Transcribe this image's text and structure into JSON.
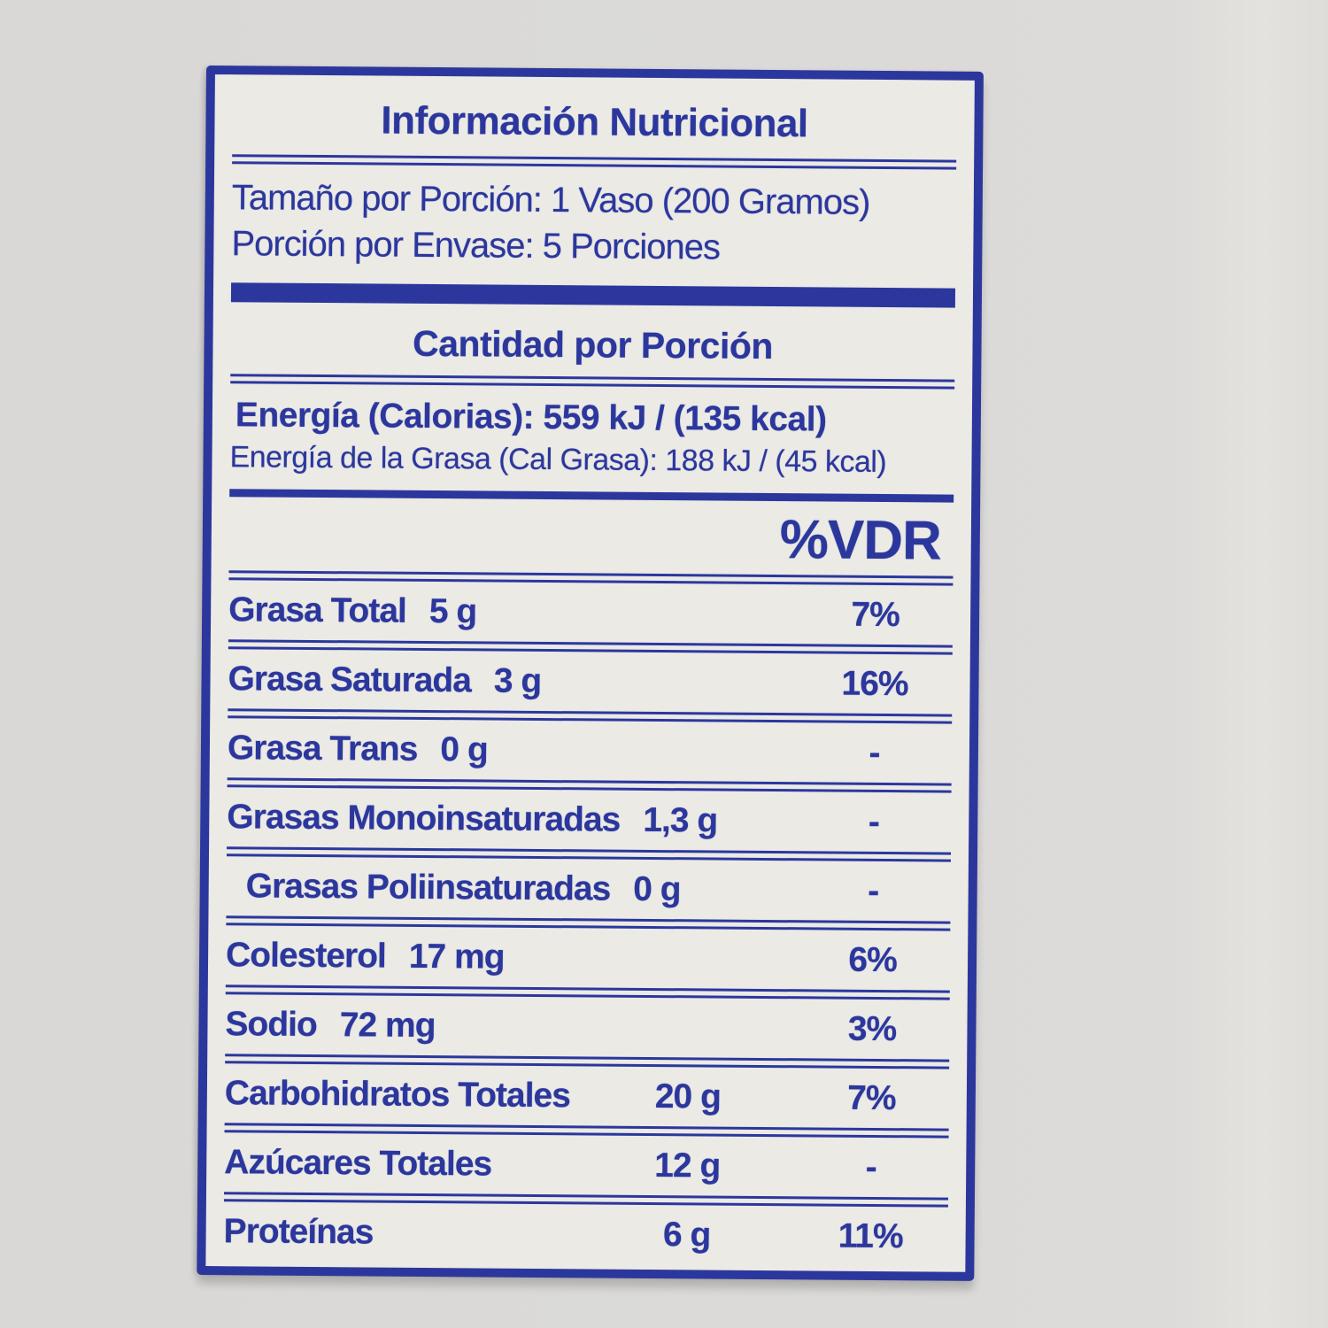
{
  "colors": {
    "accent_blue": "#2c379d",
    "label_background": "#ebeae5",
    "page_background": "#dbdad8"
  },
  "label": {
    "title": "Información Nutricional",
    "serving": {
      "size_line": "Tamaño por Porción: 1 Vaso (200 Gramos)",
      "per_container_line": "Porción por Envase: 5 Porciones"
    },
    "amount_header": "Cantidad por Porción",
    "energy": {
      "calories_line": "Energía (Calorias): 559 kJ / (135 kcal)",
      "fat_calories_line": "Energía de la Grasa (Cal Grasa): 188 kJ / (45 kcal)"
    },
    "vdr_header": "%VDR",
    "rows": [
      {
        "label": "Grasa Total",
        "amount": "5 g",
        "pct": "7%"
      },
      {
        "label": "Grasa Saturada",
        "amount": "3 g",
        "pct": "16%"
      },
      {
        "label": "Grasa Trans",
        "amount": "0 g",
        "pct": "-"
      },
      {
        "label": "Grasas Monoinsaturadas",
        "amount": "1,3 g",
        "pct": "-"
      },
      {
        "label": "Grasas Poliinsaturadas",
        "amount": "0 g",
        "pct": "-"
      },
      {
        "label": "Colesterol",
        "amount": "17 mg",
        "pct": "6%"
      },
      {
        "label": "Sodio",
        "amount": "72 mg",
        "pct": "3%"
      },
      {
        "label": "Carbohidratos Totales",
        "amount": "20 g",
        "pct": "7%"
      },
      {
        "label": "Azúcares Totales",
        "amount": "12 g",
        "pct": "-"
      },
      {
        "label": "Proteínas",
        "amount": "6 g",
        "pct": "11%"
      }
    ]
  }
}
